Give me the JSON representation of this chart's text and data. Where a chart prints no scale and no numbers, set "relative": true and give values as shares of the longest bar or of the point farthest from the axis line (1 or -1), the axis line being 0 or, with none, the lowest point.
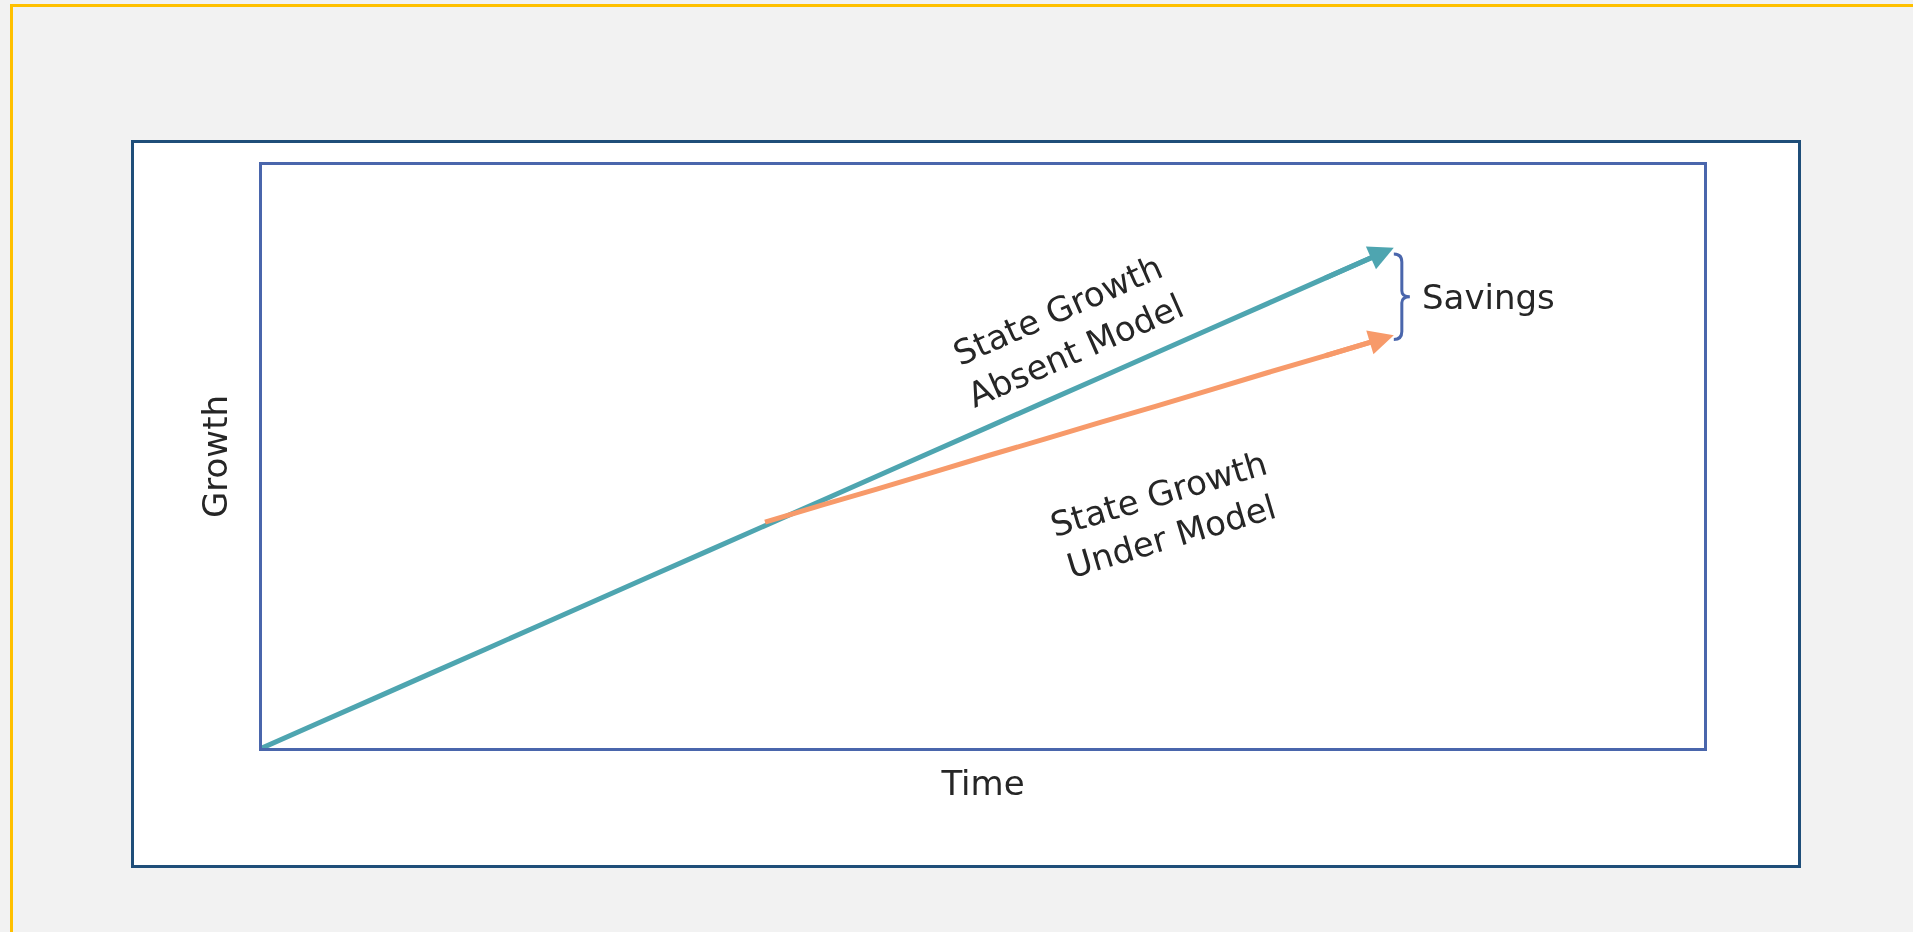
{
  "chart_data": {
    "type": "line",
    "relative": true,
    "xlabel": "Time",
    "ylabel": "Growth",
    "legend": false,
    "annotations": [
      "Savings"
    ],
    "categories": [
      null,
      null,
      null,
      null,
      null,
      null,
      null,
      null,
      null,
      null,
      null,
      null,
      null,
      null,
      null,
      null,
      null,
      null,
      null,
      null,
      null
    ],
    "series": [
      {
        "name": "State Growth Absent Model",
        "color": "#4ea5b0",
        "values": [
          0,
          0.05,
          0.1,
          0.15,
          0.2,
          0.25,
          0.3,
          0.35,
          0.4,
          0.45,
          0.5,
          0.55,
          0.6,
          0.65,
          0.7,
          0.75,
          0.8,
          0.85,
          0.9,
          0.95,
          1
        ]
      },
      {
        "name": "State Growth Under Model",
        "color": "#f79a6a",
        "values": [
          null,
          null,
          null,
          null,
          null,
          null,
          null,
          null,
          null,
          0.457,
          0.491,
          0.524,
          0.558,
          0.592,
          0.625,
          0.659,
          0.692,
          0.726,
          0.76,
          0.793,
          0.827
        ]
      }
    ]
  }
}
